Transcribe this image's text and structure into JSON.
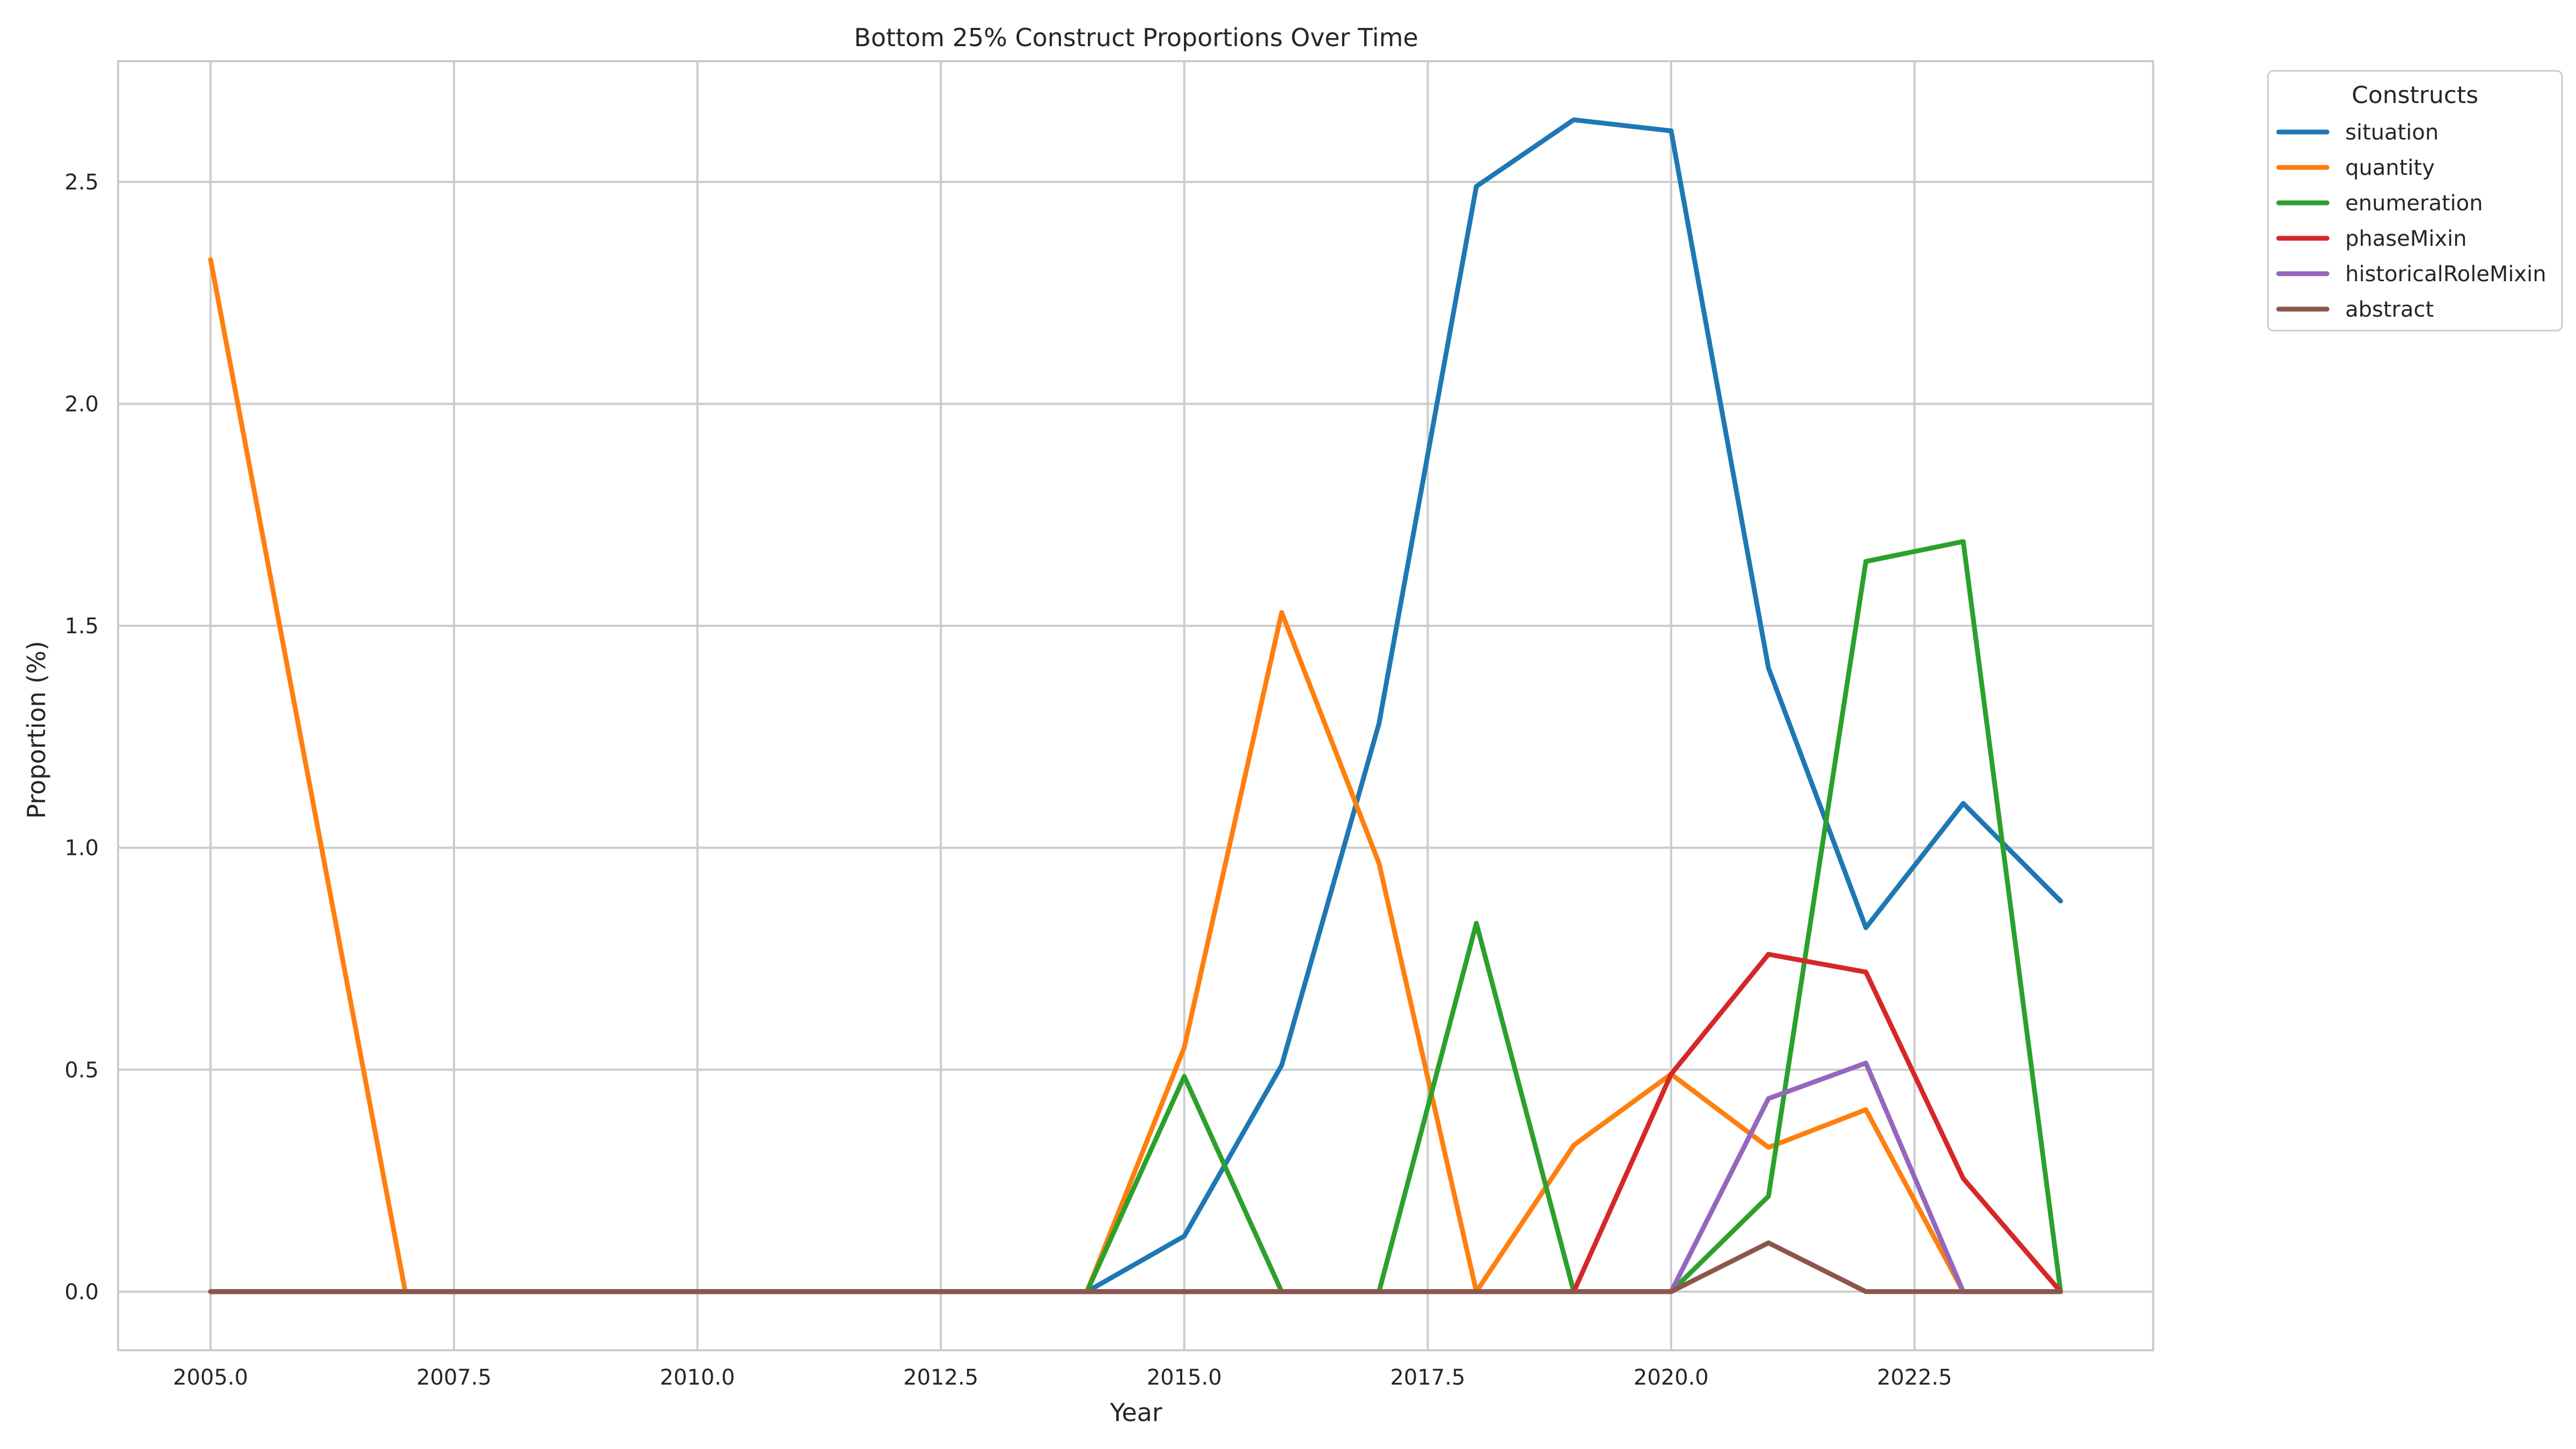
{
  "chart_data": {
    "type": "line",
    "title": "Bottom 25% Construct Proportions Over Time",
    "xlabel": "Year",
    "ylabel": "Proportion (%)",
    "xlim": [
      2004.05,
      2024.95
    ],
    "ylim": [
      -0.132,
      2.772
    ],
    "xticks": [
      2005.0,
      2007.5,
      2010.0,
      2012.5,
      2015.0,
      2017.5,
      2020.0,
      2022.5
    ],
    "xtick_labels": [
      "2005.0",
      "2007.5",
      "2010.0",
      "2012.5",
      "2015.0",
      "2017.5",
      "2020.0",
      "2022.5"
    ],
    "yticks": [
      0.0,
      0.5,
      1.0,
      1.5,
      2.0,
      2.5
    ],
    "ytick_labels": [
      "0.0",
      "0.5",
      "1.0",
      "1.5",
      "2.0",
      "2.5"
    ],
    "grid": true,
    "legend": {
      "title": "Constructs",
      "placement": "outside upper-right"
    },
    "x": [
      2005,
      2006,
      2007,
      2008,
      2009,
      2010,
      2011,
      2012,
      2013,
      2014,
      2015,
      2016,
      2017,
      2018,
      2019,
      2020,
      2021,
      2022,
      2023,
      2024
    ],
    "series": [
      {
        "name": "situation",
        "color": "#1f77b4",
        "values": [
          0,
          0,
          0,
          0,
          0,
          0,
          0,
          0,
          0,
          0,
          0.125,
          0.51,
          1.28,
          2.49,
          2.64,
          2.615,
          1.405,
          0.82,
          1.1,
          0.88
        ]
      },
      {
        "name": "quantity",
        "color": "#ff7f0e",
        "values": [
          2.325,
          null,
          0,
          0,
          0,
          0,
          0,
          0,
          0,
          0,
          0.55,
          1.53,
          0.965,
          0,
          0.33,
          0.49,
          0.325,
          0.41,
          0,
          0
        ]
      },
      {
        "name": "enumeration",
        "color": "#2ca02c",
        "values": [
          0,
          0,
          0,
          0,
          0,
          0,
          0,
          0,
          0,
          0,
          0.485,
          0,
          0,
          0.83,
          0,
          0,
          0.215,
          1.645,
          1.69,
          0
        ]
      },
      {
        "name": "phaseMixin",
        "color": "#d62728",
        "values": [
          0,
          0,
          0,
          0,
          0,
          0,
          0,
          0,
          0,
          0,
          0,
          0,
          0,
          0,
          0,
          0.49,
          0.76,
          0.72,
          0.255,
          0
        ]
      },
      {
        "name": "historicalRoleMixin",
        "color": "#9467bd",
        "values": [
          0,
          0,
          0,
          0,
          0,
          0,
          0,
          0,
          0,
          0,
          0,
          0,
          0,
          0,
          0,
          0,
          0.435,
          0.515,
          0,
          0
        ]
      },
      {
        "name": "abstract",
        "color": "#8c564b",
        "values": [
          0,
          0,
          0,
          0,
          0,
          0,
          0,
          0,
          0,
          0,
          0,
          0,
          0,
          0,
          0,
          0,
          0.11,
          0,
          0,
          0
        ]
      }
    ]
  }
}
